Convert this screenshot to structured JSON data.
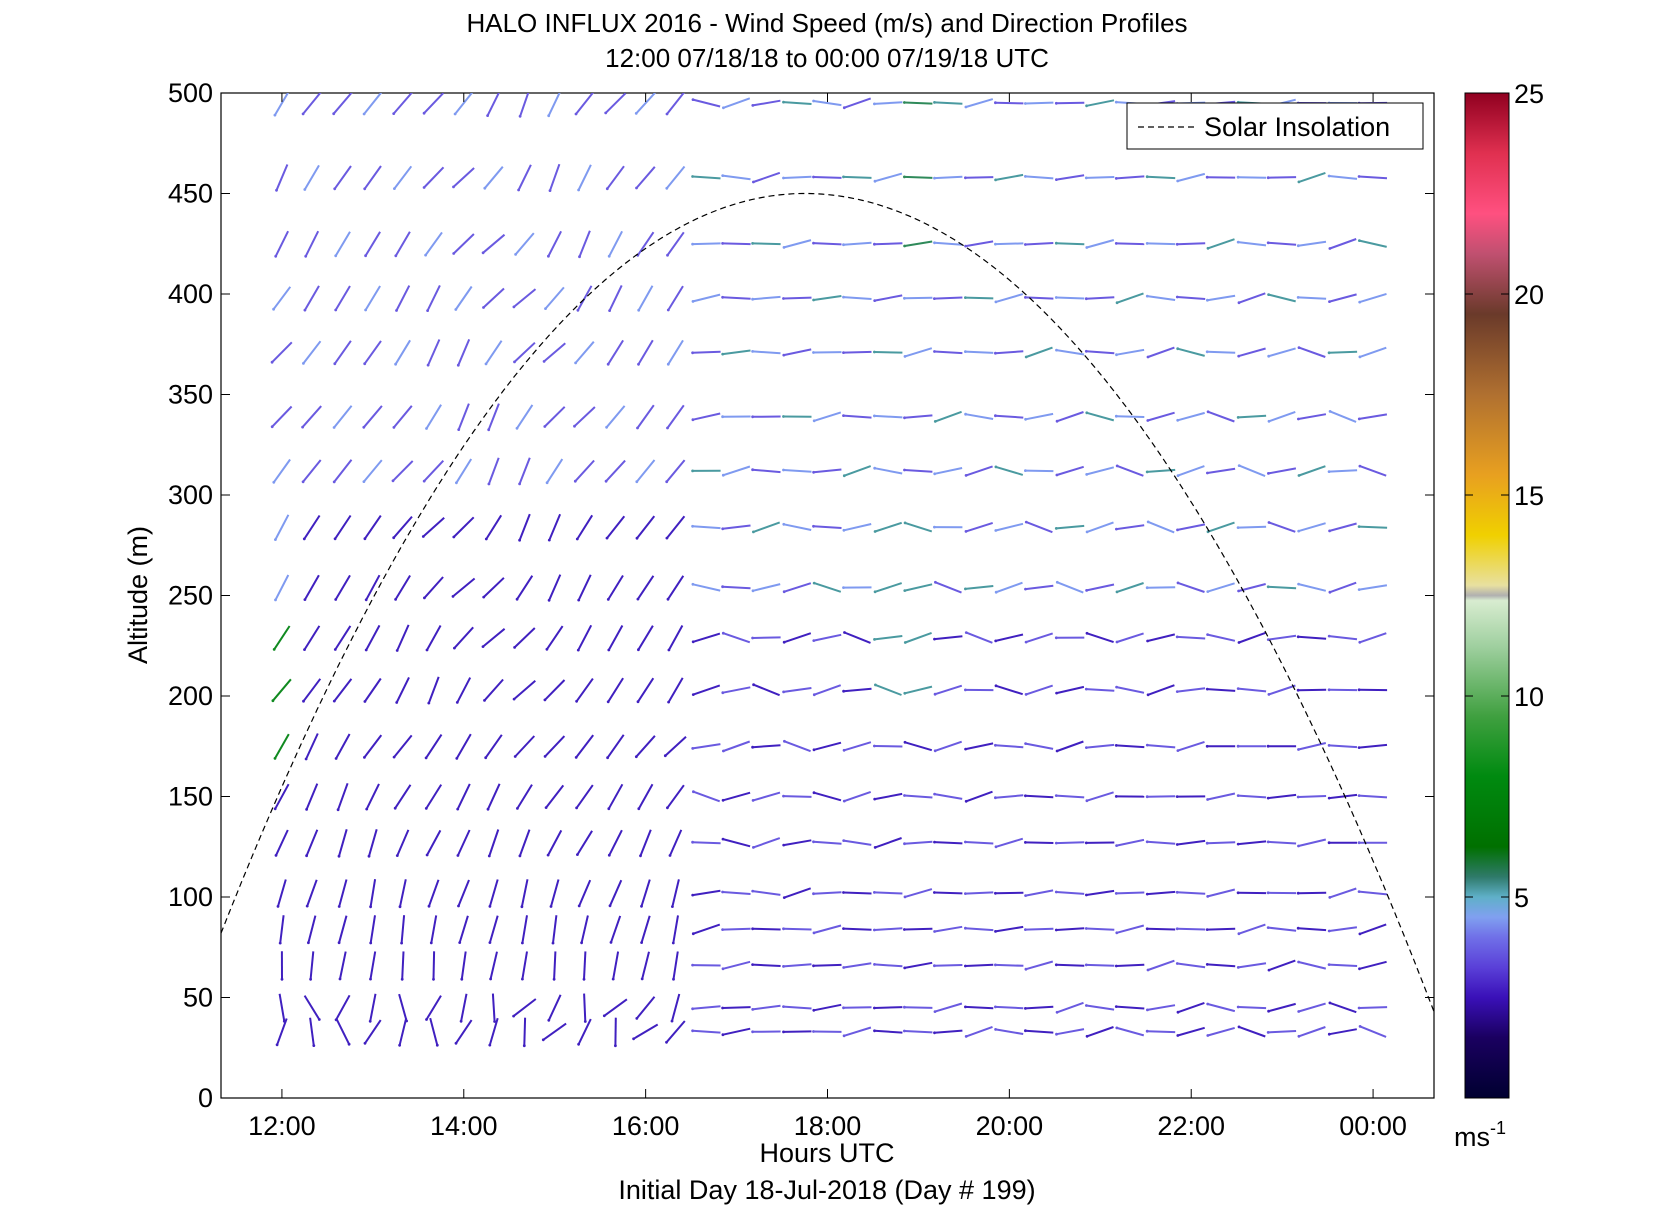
{
  "chart_data": {
    "type": "scatter",
    "title": "HALO INFLUX 2016 - Wind Speed (m/s) and Direction Profiles",
    "subtitle": "12:00 07/18/18 to 00:00 07/19/18  UTC",
    "xlabel": "Hours UTC",
    "footer": "Initial Day 18-Jul-2018 (Day # 199)",
    "ylabel": "Altitude (m)",
    "x_ticks": [
      "12:00",
      "14:00",
      "16:00",
      "18:00",
      "20:00",
      "22:00",
      "00:00"
    ],
    "x_tick_hours": [
      12,
      14,
      16,
      18,
      20,
      22,
      24
    ],
    "xlim_hours": [
      11.33,
      24.67
    ],
    "y_ticks": [
      "0",
      "50",
      "100",
      "150",
      "200",
      "250",
      "300",
      "350",
      "400",
      "450",
      "500"
    ],
    "ylim": [
      0,
      500
    ],
    "colorbar": {
      "ticks": [
        "5",
        "10",
        "15",
        "20",
        "25"
      ],
      "range": [
        0,
        25
      ],
      "unit": "ms",
      "unit_exponent": "-1"
    },
    "legend": {
      "position": "top-right",
      "entries": [
        "Solar Insolation"
      ]
    },
    "solar_insolation": {
      "style": "dashed",
      "curve_peak_altitude_m": 450,
      "curve_peak_hour": 17.75,
      "curve_start_altitude_m": 82,
      "curve_end_altitude_m": 43
    },
    "wind_barbs": {
      "times_hours": [
        12.0,
        12.33,
        12.67,
        13.0,
        13.33,
        13.67,
        14.0,
        14.33,
        14.67,
        15.0,
        15.33,
        15.67,
        16.0,
        16.33,
        16.67,
        17.0,
        17.33,
        17.67,
        18.0,
        18.33,
        18.67,
        19.0,
        19.33,
        19.67,
        20.0,
        20.33,
        20.67,
        21.0,
        21.33,
        21.67,
        22.0,
        22.33,
        22.67,
        23.0,
        23.33,
        23.67,
        24.0
      ],
      "altitudes_m": [
        33,
        45,
        66,
        84,
        102,
        127,
        150,
        175,
        203,
        229,
        254,
        284,
        312,
        339,
        371,
        398,
        425,
        458,
        495
      ],
      "speed_ms_approx": {
        "afternoon_lower_levels": 3,
        "upper_levels": 4.5,
        "near_surface_max_at_200m_12utc": 8,
        "upper_max_at_495m_19utc": 7
      },
      "direction_pattern": "near-vertical shafts below ~150 m before 16:00, tilted SW-NE shafts mid-day, near-horizontal shafts after 17:00"
    }
  }
}
